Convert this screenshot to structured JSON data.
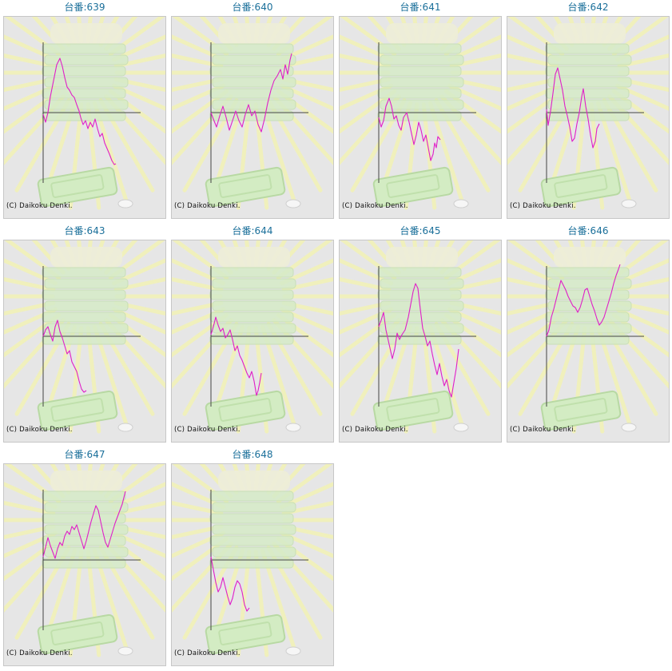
{
  "machines": [
    {
      "title": "台番:639",
      "copyright": "(C) Daikoku Denki."
    },
    {
      "title": "台番:640",
      "copyright": "(C) Daikoku Denki."
    },
    {
      "title": "台番:641",
      "copyright": "(C) Daikoku Denki."
    },
    {
      "title": "台番:642",
      "copyright": "(C) Daikoku Denki."
    },
    {
      "title": "台番:643",
      "copyright": "(C) Daikoku Denki."
    },
    {
      "title": "台番:644",
      "copyright": "(C) Daikoku Denki."
    },
    {
      "title": "台番:645",
      "copyright": "(C) Daikoku Denki."
    },
    {
      "title": "台番:646",
      "copyright": "(C) Daikoku Denki."
    },
    {
      "title": "台番:647",
      "copyright": "(C) Daikoku Denki."
    },
    {
      "title": "台番:648",
      "copyright": "(C) Daikoku Denki."
    }
  ],
  "colors": {
    "line": "#e020c8",
    "axis": "#444444",
    "title": "#1a6f9a",
    "panel_bg": "#e6e6e6",
    "rays": "#f2f2b8",
    "decor": "#d6ebc8"
  }
}
